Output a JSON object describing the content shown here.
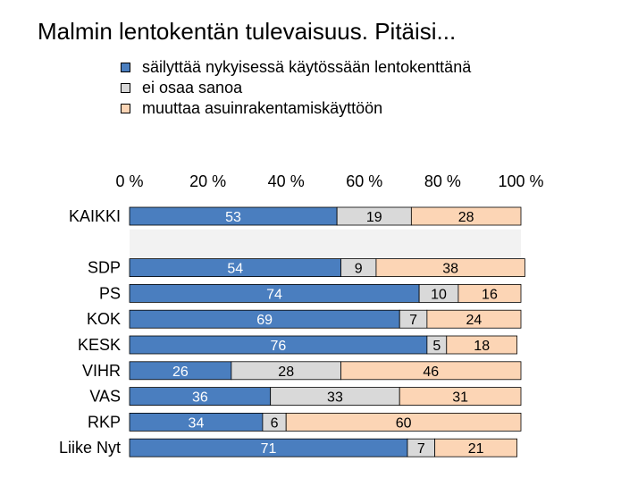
{
  "title": "Malmin lentokentän tulevaisuus. Pitäisi...",
  "colors": {
    "sailyttaa": "#4a7ebf",
    "ei_osaa": "#d9d9d9",
    "muuttaa": "#fcd5b5",
    "separator_band": "#f2f2f2"
  },
  "chart_data": {
    "type": "bar",
    "orientation": "horizontal",
    "stacked": true,
    "title": "Malmin lentokentän tulevaisuus. Pitäisi...",
    "x_ticks": [
      "0 %",
      "20 %",
      "40 %",
      "60 %",
      "80 %",
      "100 %"
    ],
    "xlim": [
      0,
      100
    ],
    "legend_position": "top",
    "categories": [
      "KAIKKI",
      "",
      "SDP",
      "PS",
      "KOK",
      "KESK",
      "VIHR",
      "VAS",
      "RKP",
      "Liike Nyt"
    ],
    "series": [
      {
        "name": "säilyttää nykyisessä käytössään lentokenttänä",
        "color": "#4a7ebf",
        "label_color": "#ffffff",
        "values": [
          53,
          null,
          54,
          74,
          69,
          76,
          26,
          36,
          34,
          71
        ]
      },
      {
        "name": "ei osaa sanoa",
        "color": "#d9d9d9",
        "label_color": "#000000",
        "values": [
          19,
          null,
          9,
          10,
          7,
          5,
          28,
          33,
          6,
          7
        ]
      },
      {
        "name": "muuttaa asuinrakentamiskäyttöön",
        "color": "#fcd5b5",
        "label_color": "#000000",
        "values": [
          28,
          null,
          38,
          16,
          24,
          18,
          46,
          31,
          60,
          21
        ]
      }
    ]
  }
}
